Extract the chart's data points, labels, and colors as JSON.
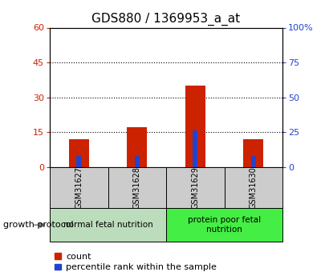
{
  "title": "GDS880 / 1369953_a_at",
  "samples": [
    "GSM31627",
    "GSM31628",
    "GSM31629",
    "GSM31630"
  ],
  "count_values": [
    12,
    17,
    35,
    12
  ],
  "percentile_values": [
    8,
    8,
    26,
    8
  ],
  "left_ylim": [
    0,
    60
  ],
  "right_ylim": [
    0,
    100
  ],
  "left_yticks": [
    0,
    15,
    30,
    45,
    60
  ],
  "right_yticks": [
    0,
    25,
    50,
    75,
    100
  ],
  "left_ytick_labels": [
    "0",
    "15",
    "30",
    "45",
    "60"
  ],
  "right_ytick_labels": [
    "0",
    "25",
    "50",
    "75",
    "100%"
  ],
  "bar_color": "#cc2200",
  "percentile_color": "#2244cc",
  "bar_width": 0.35,
  "groups": [
    {
      "label": "normal fetal nutrition",
      "indices": [
        0,
        1
      ],
      "color": "#bbddbb"
    },
    {
      "label": "protein poor fetal\nnutrition",
      "indices": [
        2,
        3
      ],
      "color": "#44ee44"
    }
  ],
  "group_label_text": "growth protocol",
  "legend_count_label": "count",
  "legend_percentile_label": "percentile rank within the sample",
  "background_color": "#ffffff",
  "plot_bg_color": "#ffffff",
  "sample_box_bg": "#cccccc",
  "title_fontsize": 11,
  "tick_fontsize": 8,
  "legend_fontsize": 8,
  "sample_fontsize": 7,
  "group_fontsize": 7.5
}
